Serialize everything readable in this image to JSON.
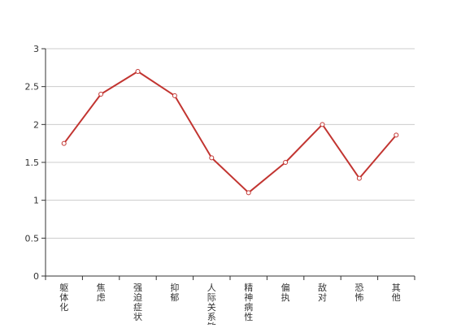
{
  "chart_data": {
    "type": "line",
    "title": "",
    "xlabel": "",
    "ylabel": "",
    "categories": [
      "躯体化",
      "焦虑",
      "强迫症状",
      "抑郁",
      "人际关系敏感",
      "精神病性",
      "偏执",
      "敌对",
      "恐怖",
      "其他"
    ],
    "series": [
      {
        "values": [
          1.75,
          2.4,
          2.7,
          2.38,
          1.56,
          1.1,
          1.5,
          2.0,
          1.29,
          1.86
        ]
      }
    ],
    "ylim": [
      0,
      3
    ],
    "yticks": [
      "0",
      "0.5",
      "1",
      "1.5",
      "2",
      "2.5",
      "3"
    ],
    "grid": true,
    "colors": {
      "line": "#c23531",
      "marker_fill": "#ffffff",
      "grid": "#cccccc",
      "axis": "#333333"
    }
  }
}
